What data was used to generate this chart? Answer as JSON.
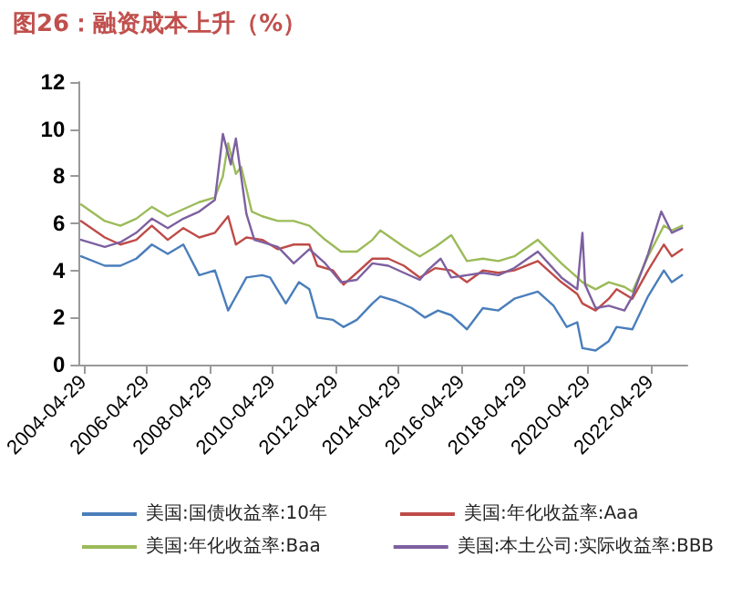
{
  "chart_data": {
    "type": "line",
    "title": "图26：融资成本上升（%）",
    "legend": "bottom",
    "grid": false,
    "marker": "none",
    "line_style": "solid",
    "xlim": [
      "2004-03-15",
      "2023-06-30"
    ],
    "xticks": [
      {
        "value": "2004-04-29",
        "label": "2004-04-29"
      },
      {
        "value": "2006-04-29",
        "label": "2006-04-29"
      },
      {
        "value": "2008-04-29",
        "label": "2008-04-29"
      },
      {
        "value": "2010-04-29",
        "label": "2010-04-29"
      },
      {
        "value": "2012-04-29",
        "label": "2012-04-29"
      },
      {
        "value": "2014-04-29",
        "label": "2014-04-29"
      },
      {
        "value": "2016-04-29",
        "label": "2016-04-29"
      },
      {
        "value": "2018-04-29",
        "label": "2018-04-29"
      },
      {
        "value": "2020-04-29",
        "label": "2020-04-29"
      },
      {
        "value": "2022-04-29",
        "label": "2022-04-29"
      }
    ],
    "ylim": [
      0,
      12
    ],
    "yticks": [
      0,
      2,
      4,
      6,
      8,
      10,
      12
    ],
    "series": [
      {
        "name": "美国:国债收益率:10年",
        "color": "#4a7ebb",
        "x": [
          "2004-04",
          "2005-01",
          "2005-07",
          "2006-01",
          "2006-07",
          "2007-01",
          "2007-07",
          "2008-01",
          "2008-07",
          "2008-12",
          "2009-07",
          "2010-01",
          "2010-04",
          "2010-10",
          "2011-03",
          "2011-07",
          "2011-10",
          "2012-04",
          "2012-08",
          "2013-01",
          "2013-07",
          "2013-10",
          "2014-04",
          "2014-10",
          "2015-03",
          "2015-08",
          "2016-01",
          "2016-07",
          "2017-01",
          "2017-07",
          "2018-01",
          "2018-10",
          "2019-04",
          "2019-09",
          "2020-01",
          "2020-03",
          "2020-08",
          "2021-01",
          "2021-04",
          "2021-10",
          "2022-04",
          "2022-10",
          "2023-01",
          "2023-05"
        ],
        "values": [
          4.6,
          4.2,
          4.2,
          4.5,
          5.1,
          4.7,
          5.1,
          3.8,
          4.0,
          2.3,
          3.7,
          3.8,
          3.7,
          2.6,
          3.5,
          3.2,
          2.0,
          1.9,
          1.6,
          1.9,
          2.6,
          2.9,
          2.7,
          2.4,
          2.0,
          2.3,
          2.1,
          1.5,
          2.4,
          2.3,
          2.8,
          3.1,
          2.5,
          1.6,
          1.8,
          0.7,
          0.6,
          1.0,
          1.6,
          1.5,
          2.9,
          4.0,
          3.5,
          3.8
        ]
      },
      {
        "name": "美国:年化收益率:Aaa",
        "color": "#be4b48",
        "x": [
          "2004-04",
          "2005-01",
          "2005-07",
          "2006-01",
          "2006-07",
          "2007-01",
          "2007-07",
          "2008-01",
          "2008-07",
          "2008-12",
          "2009-03",
          "2009-07",
          "2010-01",
          "2010-07",
          "2011-01",
          "2011-07",
          "2011-10",
          "2012-04",
          "2012-08",
          "2013-01",
          "2013-07",
          "2014-01",
          "2014-07",
          "2015-01",
          "2015-07",
          "2016-01",
          "2016-07",
          "2017-01",
          "2017-07",
          "2018-01",
          "2018-10",
          "2019-07",
          "2020-01",
          "2020-03",
          "2020-08",
          "2021-01",
          "2021-04",
          "2021-10",
          "2022-04",
          "2022-10",
          "2023-01",
          "2023-05"
        ],
        "values": [
          6.1,
          5.4,
          5.1,
          5.3,
          5.9,
          5.3,
          5.8,
          5.4,
          5.6,
          6.3,
          5.1,
          5.4,
          5.3,
          4.9,
          5.1,
          5.1,
          4.2,
          4.0,
          3.4,
          3.9,
          4.5,
          4.5,
          4.2,
          3.7,
          4.1,
          4.0,
          3.5,
          4.0,
          3.9,
          4.0,
          4.4,
          3.5,
          3.0,
          2.6,
          2.3,
          2.8,
          3.2,
          2.8,
          4.0,
          5.1,
          4.6,
          4.9
        ]
      },
      {
        "name": "美国:年化收益率:Baa",
        "color": "#9bbb59",
        "x": [
          "2004-04",
          "2005-01",
          "2005-07",
          "2006-01",
          "2006-07",
          "2007-01",
          "2007-07",
          "2008-01",
          "2008-07",
          "2008-10",
          "2008-12",
          "2009-03",
          "2009-05",
          "2009-09",
          "2010-01",
          "2010-07",
          "2011-01",
          "2011-07",
          "2012-01",
          "2012-07",
          "2013-01",
          "2013-07",
          "2013-10",
          "2014-07",
          "2015-01",
          "2015-07",
          "2016-01",
          "2016-07",
          "2017-01",
          "2017-07",
          "2018-01",
          "2018-10",
          "2019-07",
          "2020-01",
          "2020-03",
          "2020-08",
          "2021-01",
          "2021-07",
          "2021-10",
          "2022-04",
          "2022-10",
          "2023-01",
          "2023-05"
        ],
        "values": [
          6.8,
          6.1,
          5.9,
          6.2,
          6.7,
          6.3,
          6.6,
          6.9,
          7.1,
          8.0,
          9.4,
          8.1,
          8.4,
          6.5,
          6.3,
          6.1,
          6.1,
          5.9,
          5.3,
          4.8,
          4.8,
          5.3,
          5.7,
          5.0,
          4.6,
          5.0,
          5.5,
          4.4,
          4.5,
          4.4,
          4.6,
          5.3,
          4.3,
          3.7,
          3.5,
          3.2,
          3.5,
          3.3,
          3.1,
          4.6,
          5.9,
          5.7,
          5.9
        ]
      },
      {
        "name": "美国:本土公司:实际收益率:BBB",
        "color": "#7d60a0",
        "x": [
          "2004-04",
          "2005-01",
          "2005-07",
          "2006-01",
          "2006-07",
          "2007-01",
          "2007-07",
          "2008-01",
          "2008-07",
          "2008-10",
          "2009-01",
          "2009-03",
          "2009-07",
          "2009-10",
          "2010-01",
          "2010-07",
          "2011-01",
          "2011-07",
          "2012-01",
          "2012-07",
          "2013-01",
          "2013-07",
          "2014-01",
          "2014-07",
          "2015-01",
          "2015-04",
          "2015-09",
          "2016-01",
          "2016-07",
          "2017-01",
          "2017-07",
          "2018-01",
          "2018-10",
          "2019-07",
          "2020-01",
          "2020-03",
          "2020-04",
          "2020-08",
          "2021-01",
          "2021-07",
          "2021-10",
          "2022-04",
          "2022-09",
          "2023-01",
          "2023-05"
        ],
        "values": [
          5.3,
          5.0,
          5.2,
          5.6,
          6.2,
          5.8,
          6.2,
          6.5,
          7.0,
          9.8,
          8.5,
          9.6,
          6.4,
          5.3,
          5.2,
          5.0,
          4.3,
          4.9,
          4.3,
          3.5,
          3.6,
          4.3,
          4.2,
          3.9,
          3.6,
          4.0,
          4.5,
          3.7,
          3.8,
          3.9,
          3.8,
          4.1,
          4.8,
          3.7,
          3.2,
          5.6,
          3.4,
          2.4,
          2.5,
          2.3,
          2.9,
          4.7,
          6.5,
          5.6,
          5.8
        ]
      }
    ]
  }
}
